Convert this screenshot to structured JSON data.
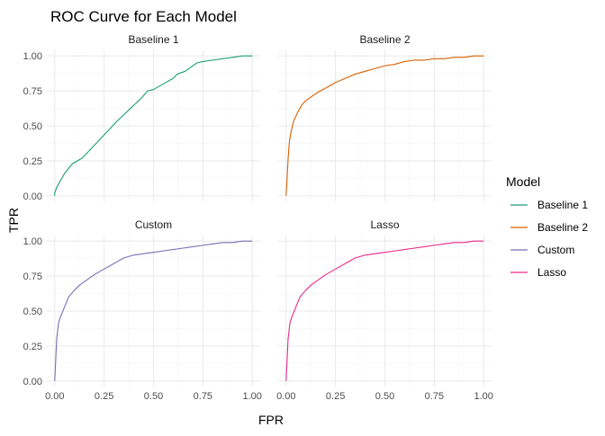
{
  "chart_data": {
    "type": "line",
    "title": "ROC Curve for Each Model",
    "xlabel": "FPR",
    "ylabel": "TPR",
    "xlim": [
      -0.04,
      1.04
    ],
    "ylim": [
      -0.04,
      1.04
    ],
    "x_ticks": [
      "0.00",
      "0.25",
      "0.50",
      "0.75",
      "1.00"
    ],
    "y_ticks": [
      "0.00",
      "0.25",
      "0.50",
      "0.75",
      "1.00"
    ],
    "grid": true,
    "legend": {
      "title": "Model",
      "placement": "right"
    },
    "series": [
      {
        "name": "Baseline 1",
        "color": "#1B9E77",
        "x": [
          0.0,
          0.0,
          0.01,
          0.05,
          0.09,
          0.14,
          0.2,
          0.26,
          0.32,
          0.38,
          0.44,
          0.47,
          0.5,
          0.55,
          0.6,
          0.62,
          0.66,
          0.7,
          0.72,
          0.75,
          0.8,
          0.85,
          0.9,
          0.95,
          1.0
        ],
        "y": [
          0.0,
          0.02,
          0.06,
          0.16,
          0.23,
          0.27,
          0.36,
          0.45,
          0.54,
          0.62,
          0.7,
          0.75,
          0.76,
          0.8,
          0.84,
          0.87,
          0.89,
          0.93,
          0.95,
          0.96,
          0.97,
          0.98,
          0.99,
          1.0,
          1.0
        ]
      },
      {
        "name": "Baseline 2",
        "color": "#D95F02",
        "x": [
          0.0,
          0.005,
          0.01,
          0.015,
          0.02,
          0.03,
          0.04,
          0.06,
          0.08,
          0.1,
          0.13,
          0.16,
          0.2,
          0.25,
          0.3,
          0.35,
          0.4,
          0.45,
          0.5,
          0.55,
          0.6,
          0.65,
          0.7,
          0.75,
          0.8,
          0.85,
          0.9,
          0.95,
          1.0
        ],
        "y": [
          0.0,
          0.12,
          0.26,
          0.36,
          0.42,
          0.49,
          0.54,
          0.6,
          0.65,
          0.68,
          0.71,
          0.74,
          0.77,
          0.81,
          0.84,
          0.87,
          0.89,
          0.91,
          0.93,
          0.94,
          0.96,
          0.97,
          0.97,
          0.98,
          0.98,
          0.99,
          0.99,
          1.0,
          1.0
        ]
      },
      {
        "name": "Custom",
        "color": "#7570B3",
        "x": [
          0.0,
          0.005,
          0.01,
          0.02,
          0.03,
          0.05,
          0.07,
          0.1,
          0.13,
          0.16,
          0.2,
          0.25,
          0.3,
          0.35,
          0.4,
          0.45,
          0.5,
          0.55,
          0.6,
          0.65,
          0.7,
          0.75,
          0.8,
          0.85,
          0.9,
          0.95,
          1.0
        ],
        "y": [
          0.0,
          0.15,
          0.3,
          0.42,
          0.46,
          0.53,
          0.6,
          0.65,
          0.69,
          0.72,
          0.76,
          0.8,
          0.84,
          0.88,
          0.9,
          0.91,
          0.92,
          0.93,
          0.94,
          0.95,
          0.96,
          0.97,
          0.98,
          0.99,
          0.99,
          1.0,
          1.0
        ]
      },
      {
        "name": "Lasso",
        "color": "#E7298A",
        "x": [
          0.0,
          0.005,
          0.01,
          0.02,
          0.03,
          0.05,
          0.07,
          0.1,
          0.13,
          0.16,
          0.2,
          0.25,
          0.3,
          0.35,
          0.4,
          0.45,
          0.5,
          0.55,
          0.6,
          0.65,
          0.7,
          0.75,
          0.8,
          0.85,
          0.9,
          0.95,
          1.0
        ],
        "y": [
          0.0,
          0.15,
          0.3,
          0.42,
          0.46,
          0.53,
          0.6,
          0.65,
          0.69,
          0.72,
          0.76,
          0.8,
          0.84,
          0.88,
          0.9,
          0.91,
          0.92,
          0.93,
          0.94,
          0.95,
          0.96,
          0.97,
          0.98,
          0.99,
          0.99,
          1.0,
          1.0
        ]
      }
    ],
    "facets": [
      "Baseline 1",
      "Baseline 2",
      "Custom",
      "Lasso"
    ]
  },
  "colors": {
    "grid_major": "#EBEBEB",
    "grid_minor": "#F5F5F5",
    "text": "#1A1A1A",
    "tick_text": "#4D4D4D"
  }
}
